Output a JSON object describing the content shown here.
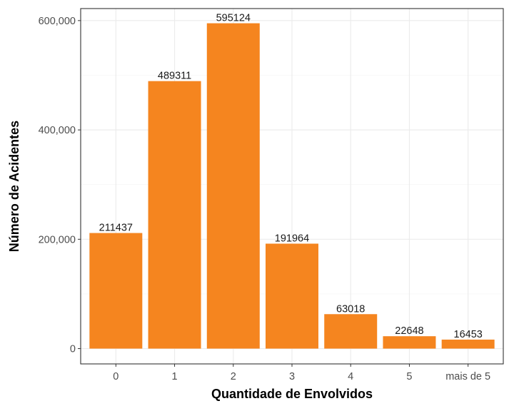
{
  "chart_data": {
    "type": "bar",
    "categories": [
      "0",
      "1",
      "2",
      "3",
      "4",
      "5",
      "mais de 5"
    ],
    "values": [
      211437,
      489311,
      595124,
      191964,
      63018,
      22648,
      16453
    ],
    "data_labels": [
      "211437",
      "489311",
      "595124",
      "191964",
      "63018",
      "22648",
      "16453"
    ],
    "xlabel": "Quantidade de Envolvidos",
    "ylabel": "Número de Acidentes",
    "ylim": [
      -28000,
      622000
    ],
    "y_ticks": [
      0,
      200000,
      400000,
      600000
    ],
    "y_tick_labels": [
      "0",
      "200,000",
      "400,000",
      "600,000"
    ],
    "grid": true,
    "bar_color": "#F5851F"
  }
}
